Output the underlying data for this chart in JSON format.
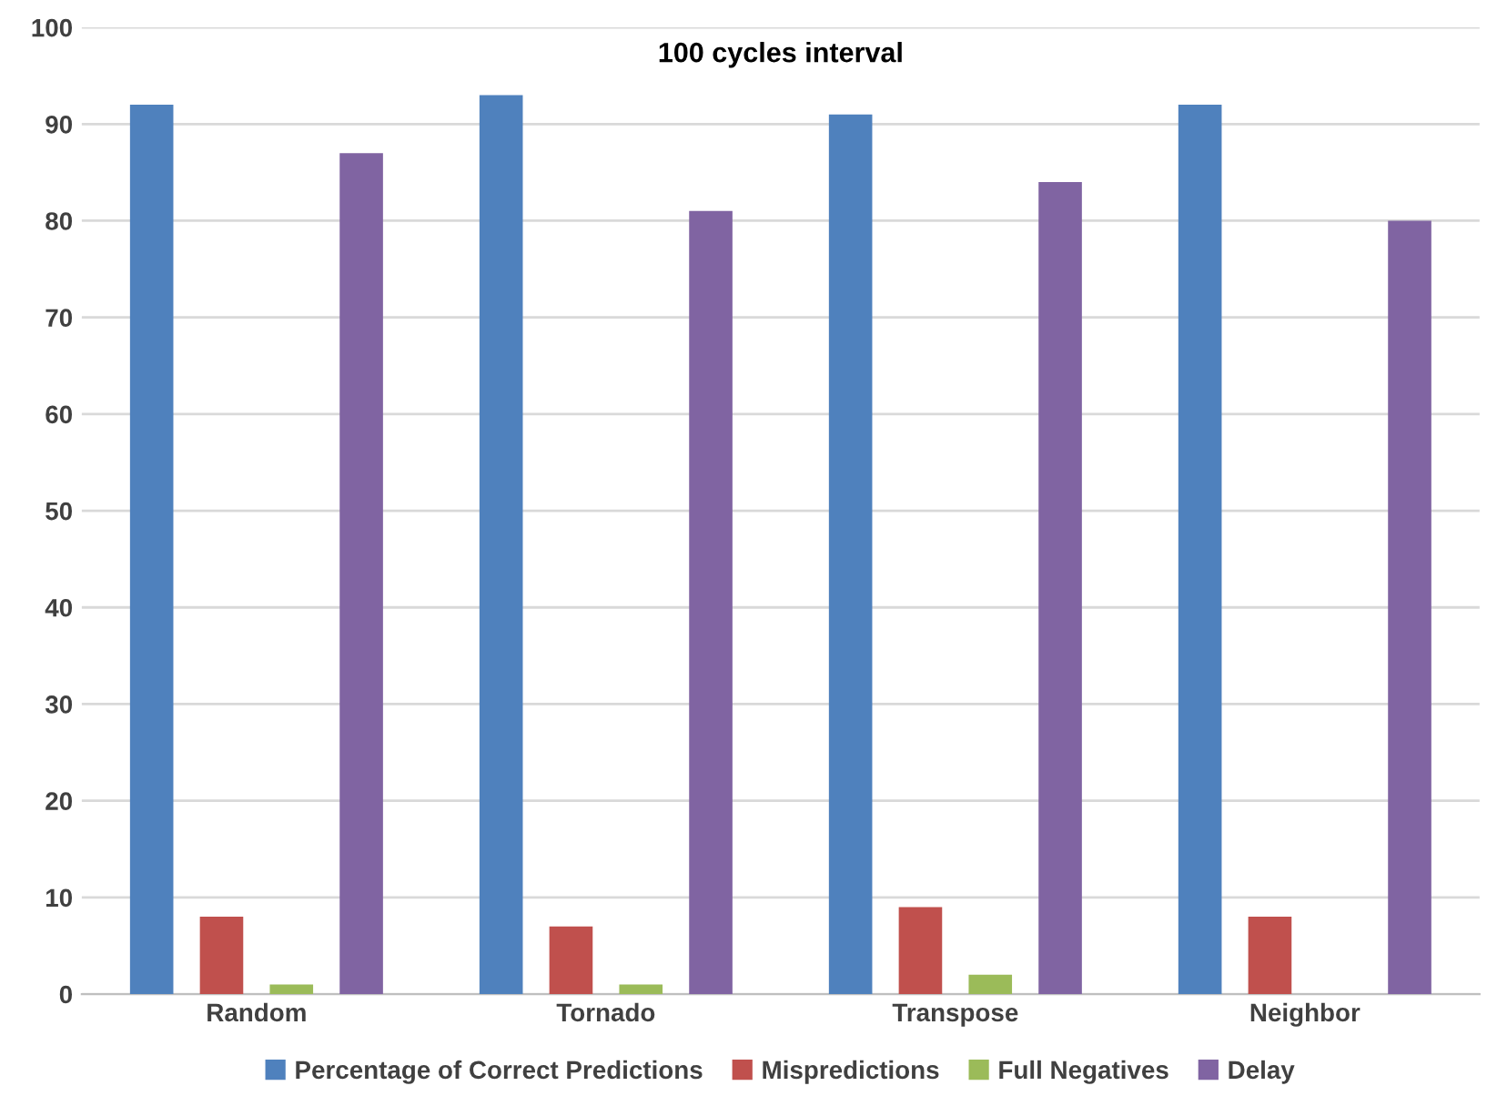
{
  "chart_data": {
    "type": "bar",
    "title": "100 cycles interval",
    "categories": [
      "Random",
      "Tornado",
      "Transpose",
      "Neighbor"
    ],
    "series": [
      {
        "name": "Percentage of Correct Predictions",
        "color": "#4f81bd",
        "values": [
          92,
          93,
          91,
          92
        ]
      },
      {
        "name": "Mispredictions",
        "color": "#c0504d",
        "values": [
          8,
          7,
          9,
          8
        ]
      },
      {
        "name": "Full Negatives",
        "color": "#9bbb59",
        "values": [
          1,
          1,
          2,
          0
        ]
      },
      {
        "name": "Delay",
        "color": "#8064a2",
        "values": [
          87,
          81,
          84,
          80
        ]
      }
    ],
    "ylim": [
      0,
      100
    ],
    "yticks": [
      0,
      10,
      20,
      30,
      40,
      50,
      60,
      70,
      80,
      90,
      100
    ],
    "grid": "y",
    "legend": "bottom"
  }
}
